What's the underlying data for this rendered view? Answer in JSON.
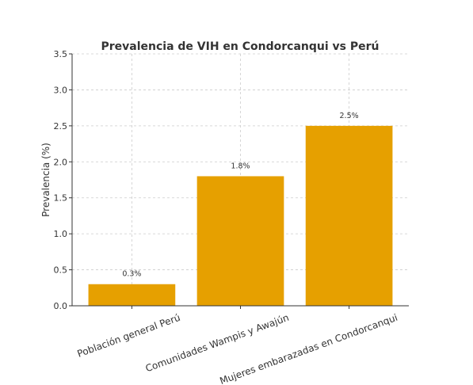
{
  "chart_data": {
    "type": "bar",
    "title": "Prevalencia de VIH en Condorcanqui vs Perú",
    "xlabel": "",
    "ylabel": "Prevalencia (%)",
    "categories": [
      "Población general Perú",
      "Comunidades Wampis y Awajún",
      "Mujeres embarazadas en Condorcanqui"
    ],
    "values": [
      0.3,
      1.8,
      2.5
    ],
    "data_labels": [
      "0.3%",
      "1.8%",
      "2.5%"
    ],
    "ylim": [
      0,
      3.5
    ],
    "yticks": [
      0.0,
      0.5,
      1.0,
      1.5,
      2.0,
      2.5,
      3.0,
      3.5
    ],
    "ytick_labels": [
      "0.0",
      "0.5",
      "1.0",
      "1.5",
      "2.0",
      "2.5",
      "3.0",
      "3.5"
    ],
    "grid": true,
    "bar_color": "#E6A000"
  }
}
